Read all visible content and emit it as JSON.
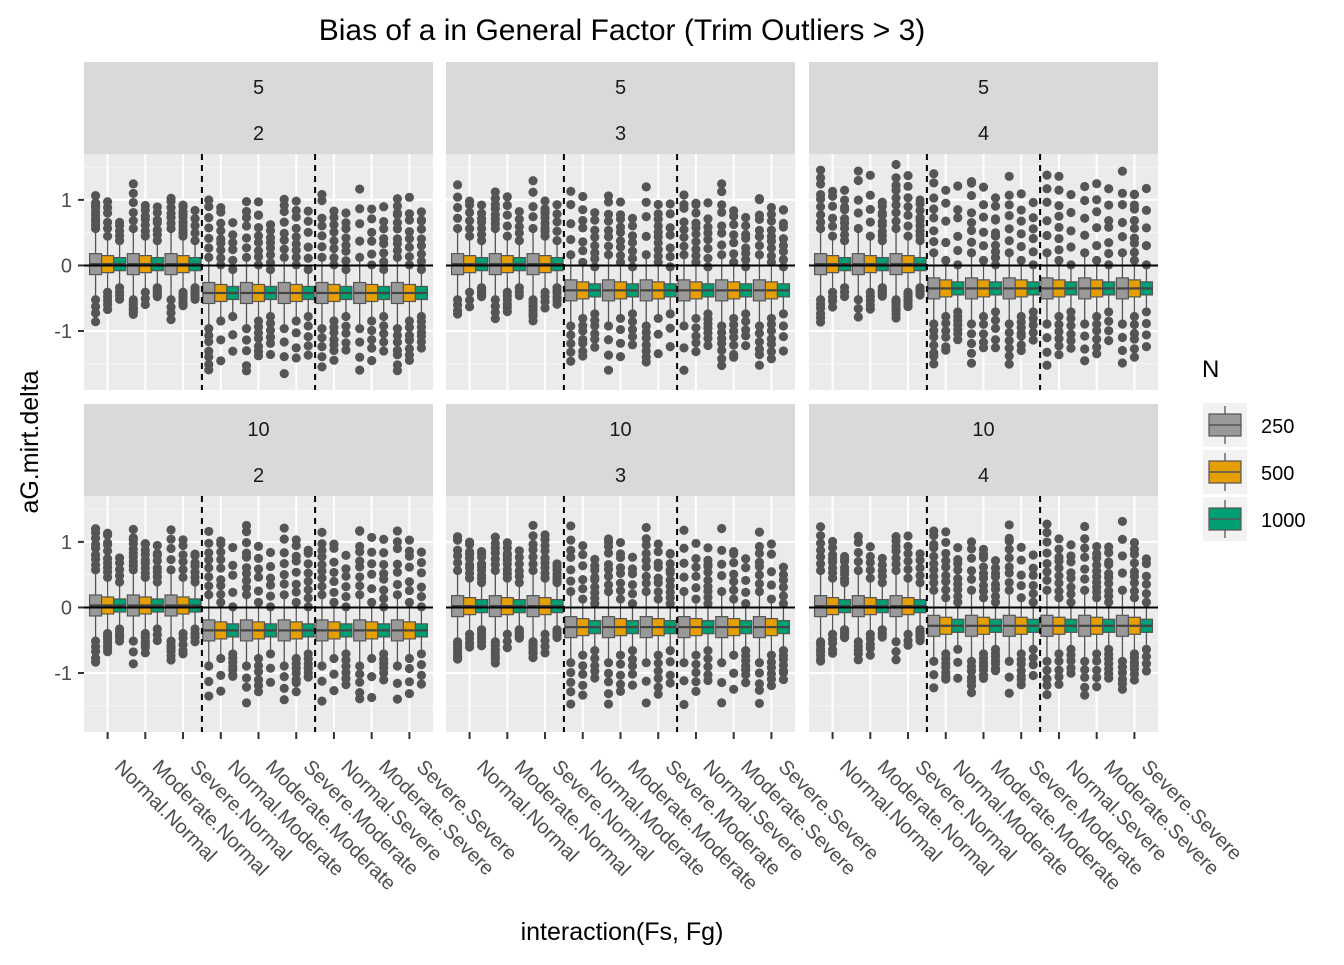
{
  "chart_data": {
    "type": "boxplot",
    "title": "Bias of a in General Factor (Trim Outliers > 3)",
    "xlabel": "interaction(Fs, Fg)",
    "ylabel": "aG.mirt.delta",
    "y_ticks": [
      -1,
      0,
      1
    ],
    "ylim": [
      -1.9,
      1.7
    ],
    "reference_line_y": 0,
    "categories": [
      "Normal.Normal",
      "Moderate.Normal",
      "Severe.Normal",
      "Normal.Moderate",
      "Moderate.Moderate",
      "Severe.Moderate",
      "Normal.Severe",
      "Moderate.Severe",
      "Severe.Severe"
    ],
    "group_separators_after": [
      3,
      6
    ],
    "legend": {
      "title": "N",
      "placement": "right",
      "items": [
        {
          "label": "250",
          "color": "#999999"
        },
        {
          "label": "500",
          "color": "#E69F00"
        },
        {
          "label": "1000",
          "color": "#009E73"
        }
      ]
    },
    "panels": [
      {
        "strip_top": "5",
        "strip_bottom": "2",
        "median_first3": 0.02,
        "median_rest": -0.42,
        "ymin": -1.75,
        "ymax": 1.3
      },
      {
        "strip_top": "5",
        "strip_bottom": "3",
        "median_first3": 0.02,
        "median_rest": -0.38,
        "ymin": -1.65,
        "ymax": 1.35
      },
      {
        "strip_top": "5",
        "strip_bottom": "4",
        "median_first3": 0.02,
        "median_rest": -0.35,
        "ymin": -1.6,
        "ymax": 1.6
      },
      {
        "strip_top": "10",
        "strip_bottom": "2",
        "median_first3": 0.03,
        "median_rest": -0.35,
        "ymin": -1.55,
        "ymax": 1.4
      },
      {
        "strip_top": "10",
        "strip_bottom": "3",
        "median_first3": 0.02,
        "median_rest": -0.3,
        "ymin": -1.55,
        "ymax": 1.3
      },
      {
        "strip_top": "10",
        "strip_bottom": "4",
        "median_first3": 0.02,
        "median_rest": -0.28,
        "ymin": -1.4,
        "ymax": 1.35
      }
    ]
  }
}
